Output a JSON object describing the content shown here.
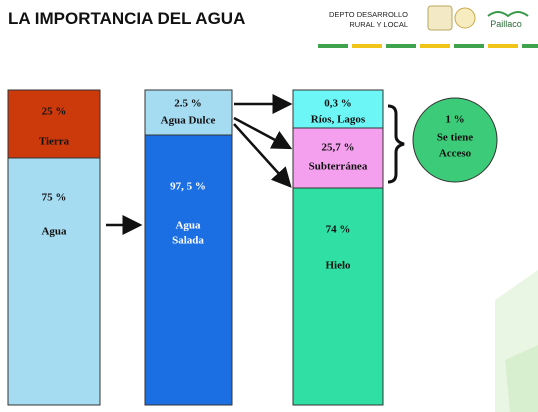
{
  "header": {
    "title": "LA IMPORTANCIA DEL AGUA",
    "org": [
      "DEPTO DESARROLLO",
      "RURAL Y LOCAL"
    ],
    "brand": "Paillaco"
  },
  "columns": [
    {
      "segments": [
        {
          "value": "25 %",
          "label": "Tierra"
        },
        {
          "value": "75 %",
          "label": "Agua"
        }
      ]
    },
    {
      "segments": [
        {
          "value": "2.5 %",
          "label": "Agua Dulce"
        },
        {
          "value": "97, 5 %",
          "label": [
            "Agua",
            "Salada"
          ]
        }
      ]
    },
    {
      "segments": [
        {
          "value": "0,3 %",
          "label": "Ríos, Lagos"
        },
        {
          "value": "25,7 %",
          "label": "Subterránea"
        },
        {
          "value": "74 %",
          "label": "Hielo"
        }
      ]
    }
  ],
  "circle": {
    "value": "1 %",
    "label": [
      "Se tiene",
      "Acceso"
    ]
  }
}
